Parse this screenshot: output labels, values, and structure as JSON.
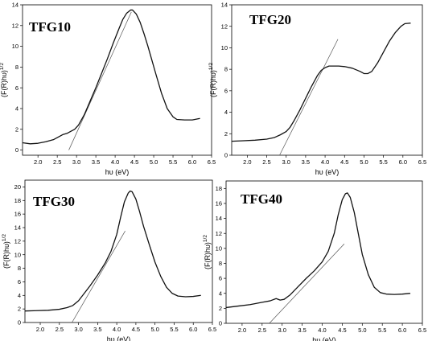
{
  "chart_data": [
    {
      "type": "line",
      "title": "TFG10",
      "xlabel": "hυ (eV)",
      "ylabel": "(F(R)hυ)",
      "ylabel_sup": "1/2",
      "xlim": [
        1.6,
        6.5
      ],
      "ylim": [
        -0.5,
        14
      ],
      "xticks": [
        "2.0",
        "2.5",
        "3.0",
        "3.5",
        "4.0",
        "4.5",
        "5.0",
        "5.5",
        "6.0",
        "6.5"
      ],
      "yticks": [
        "0",
        "2",
        "4",
        "6",
        "8",
        "10",
        "12",
        "14"
      ],
      "series": [
        {
          "x": [
            1.6,
            1.8,
            2.0,
            2.2,
            2.4,
            2.55,
            2.65,
            2.75,
            2.85,
            2.95,
            3.05,
            3.2,
            3.35,
            3.5,
            3.65,
            3.8,
            3.95,
            4.1,
            4.2,
            4.3,
            4.4,
            4.45,
            4.55,
            4.65,
            4.75,
            4.85,
            4.95,
            5.05,
            5.2,
            5.35,
            5.5,
            5.6,
            5.8,
            6.0,
            6.2
          ],
          "y": [
            0.7,
            0.6,
            0.65,
            0.8,
            1.0,
            1.3,
            1.5,
            1.6,
            1.8,
            2.0,
            2.4,
            3.4,
            4.7,
            6.0,
            7.4,
            8.8,
            10.3,
            11.7,
            12.6,
            13.2,
            13.5,
            13.5,
            13.1,
            12.3,
            11.2,
            10.0,
            8.7,
            7.4,
            5.5,
            4.0,
            3.2,
            2.95,
            2.9,
            2.9,
            3.05
          ]
        }
      ],
      "tangent": {
        "x": [
          2.8,
          4.42
        ],
        "y": [
          0.0,
          13.3
        ]
      }
    },
    {
      "type": "line",
      "title": "TFG20",
      "xlabel": "hυ (eV)",
      "ylabel": "(F(R)hυ)",
      "ylabel_sup": "1/2",
      "xlim": [
        1.6,
        6.5
      ],
      "ylim": [
        0,
        14
      ],
      "xticks": [
        "2.0",
        "2.5",
        "3.0",
        "3.5",
        "4.0",
        "4.5",
        "5.0",
        "5.5",
        "6.0",
        "6.5"
      ],
      "yticks": [
        "0",
        "2",
        "4",
        "6",
        "8",
        "10",
        "12",
        "14"
      ],
      "series": [
        {
          "x": [
            1.6,
            1.9,
            2.2,
            2.5,
            2.7,
            2.85,
            3.0,
            3.1,
            3.2,
            3.35,
            3.5,
            3.65,
            3.8,
            3.9,
            4.0,
            4.1,
            4.2,
            4.35,
            4.5,
            4.7,
            4.9,
            5.0,
            5.1,
            5.2,
            5.35,
            5.5,
            5.65,
            5.8,
            5.95,
            6.05,
            6.2
          ],
          "y": [
            1.3,
            1.35,
            1.4,
            1.5,
            1.65,
            1.9,
            2.2,
            2.6,
            3.2,
            4.2,
            5.3,
            6.4,
            7.4,
            7.9,
            8.15,
            8.3,
            8.3,
            8.3,
            8.25,
            8.1,
            7.8,
            7.6,
            7.6,
            7.8,
            8.6,
            9.6,
            10.6,
            11.4,
            12.0,
            12.25,
            12.3
          ]
        }
      ],
      "tangent": {
        "x": [
          2.83,
          4.33
        ],
        "y": [
          0.0,
          10.8
        ]
      }
    },
    {
      "type": "line",
      "title": "TFG30",
      "xlabel": "hυ (eV)",
      "ylabel": "(F(R)hυ)",
      "ylabel_sup": "1/2",
      "xlim": [
        1.6,
        6.5
      ],
      "ylim": [
        0,
        21
      ],
      "xticks": [
        "2.0",
        "2.5",
        "3.0",
        "3.5",
        "4.0",
        "4.5",
        "5.0",
        "5.5",
        "6.0",
        "6.5"
      ],
      "yticks": [
        "0",
        "2",
        "4",
        "6",
        "8",
        "10",
        "12",
        "14",
        "16",
        "18",
        "20"
      ],
      "series": [
        {
          "x": [
            1.6,
            1.9,
            2.2,
            2.5,
            2.7,
            2.85,
            3.0,
            3.15,
            3.3,
            3.5,
            3.7,
            3.85,
            4.0,
            4.1,
            4.2,
            4.3,
            4.35,
            4.4,
            4.5,
            4.6,
            4.7,
            4.85,
            5.0,
            5.15,
            5.3,
            5.45,
            5.6,
            5.8,
            6.0,
            6.2
          ],
          "y": [
            1.7,
            1.75,
            1.8,
            1.95,
            2.2,
            2.5,
            3.2,
            4.3,
            5.4,
            7.0,
            8.8,
            10.5,
            13.0,
            15.5,
            17.8,
            19.1,
            19.4,
            19.3,
            18.2,
            16.3,
            14.2,
            11.5,
            8.9,
            6.8,
            5.2,
            4.3,
            3.9,
            3.8,
            3.85,
            4.0
          ]
        }
      ],
      "tangent": {
        "x": [
          2.83,
          4.22
        ],
        "y": [
          0.0,
          13.5
        ]
      }
    },
    {
      "type": "line",
      "title": "TFG40",
      "xlabel": "hυ (eV)",
      "ylabel": "(F(R)hυ)",
      "ylabel_sup": "1/2",
      "xlim": [
        1.6,
        6.5
      ],
      "ylim": [
        0,
        19
      ],
      "xticks": [
        "2.0",
        "2.5",
        "3.0",
        "3.5",
        "4.0",
        "4.5",
        "5.0",
        "5.5",
        "6.0",
        "6.5"
      ],
      "yticks": [
        "0",
        "2",
        "4",
        "6",
        "8",
        "10",
        "12",
        "14",
        "16",
        "18"
      ],
      "series": [
        {
          "x": [
            1.6,
            1.9,
            2.2,
            2.5,
            2.7,
            2.85,
            2.95,
            3.05,
            3.2,
            3.4,
            3.6,
            3.8,
            4.0,
            4.15,
            4.3,
            4.4,
            4.5,
            4.58,
            4.63,
            4.7,
            4.8,
            4.9,
            5.0,
            5.15,
            5.3,
            5.45,
            5.6,
            5.8,
            6.0,
            6.2
          ],
          "y": [
            2.1,
            2.3,
            2.5,
            2.8,
            3.0,
            3.3,
            3.1,
            3.2,
            3.8,
            4.9,
            6.0,
            7.0,
            8.2,
            9.6,
            12.0,
            14.5,
            16.5,
            17.3,
            17.4,
            16.8,
            14.8,
            12.0,
            9.2,
            6.5,
            4.8,
            4.1,
            3.9,
            3.85,
            3.9,
            4.0
          ]
        }
      ],
      "tangent": {
        "x": [
          2.68,
          4.55
        ],
        "y": [
          0.0,
          10.6
        ]
      }
    }
  ]
}
